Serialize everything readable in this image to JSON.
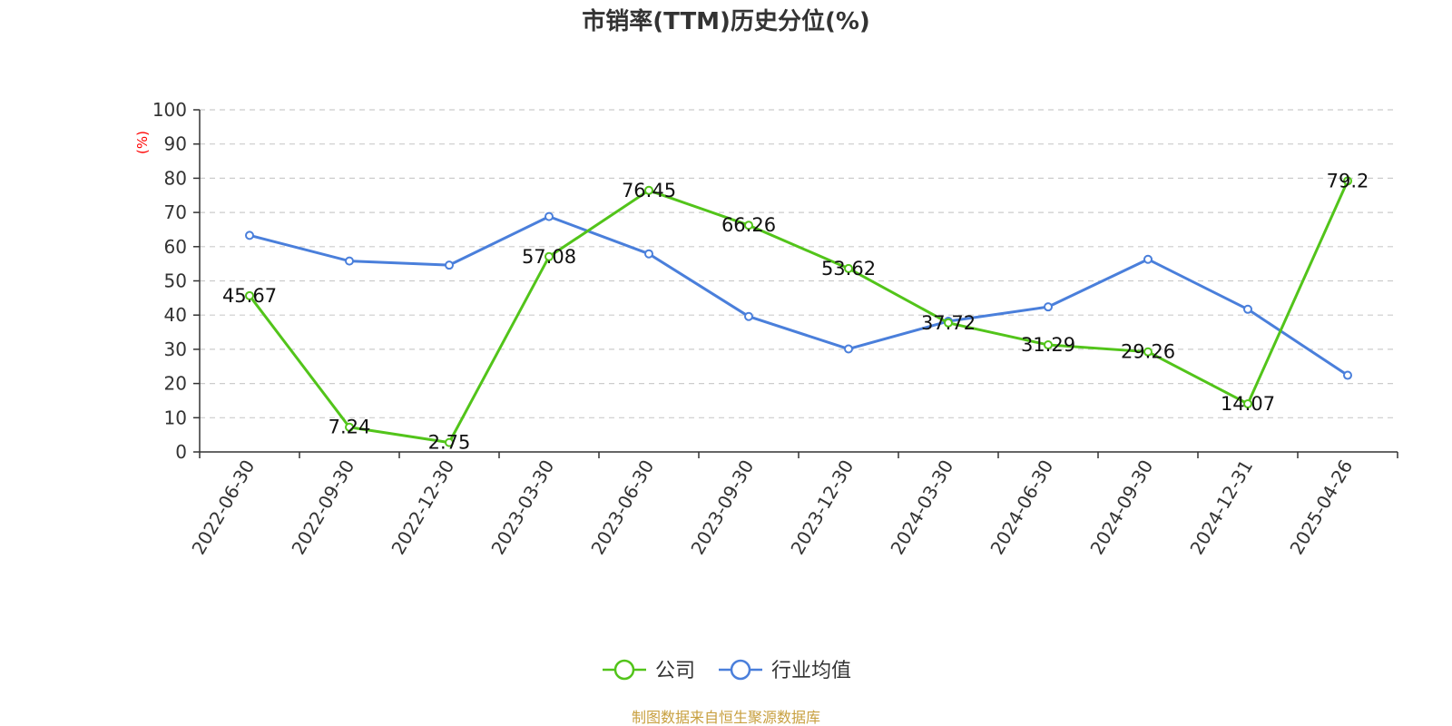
{
  "chart_data": {
    "type": "line",
    "title": "市销率(TTM)历史分位(%)",
    "y_unit_label": "(%)",
    "ylim": [
      0,
      100
    ],
    "y_ticks": [
      0,
      10,
      20,
      30,
      40,
      50,
      60,
      70,
      80,
      90,
      100
    ],
    "grid": true,
    "legend_position": "bottom-center",
    "categories": [
      "2022-06-30",
      "2022-09-30",
      "2022-12-30",
      "2023-03-30",
      "2023-06-30",
      "2023-09-30",
      "2023-12-30",
      "2024-03-30",
      "2024-06-30",
      "2024-09-30",
      "2024-12-31",
      "2025-04-26"
    ],
    "series": [
      {
        "name": "公司",
        "color": "#52c41a",
        "values": [
          45.67,
          7.24,
          2.75,
          57.08,
          76.45,
          66.26,
          53.62,
          37.72,
          31.29,
          29.26,
          14.07,
          79.2
        ],
        "labels": [
          "45.67",
          "7.24",
          "2.75",
          "57.08",
          "76.45",
          "66.26",
          "53.62",
          "37.72",
          "31.29",
          "29.26",
          "14.07",
          "79.2"
        ]
      },
      {
        "name": "行业均值",
        "color": "#4a7fdb",
        "values": [
          63.3,
          55.8,
          54.6,
          68.8,
          57.9,
          39.6,
          30.1,
          38.2,
          42.4,
          56.3,
          41.7,
          22.4
        ]
      }
    ],
    "source": "制图数据来自恒生聚源数据库"
  }
}
